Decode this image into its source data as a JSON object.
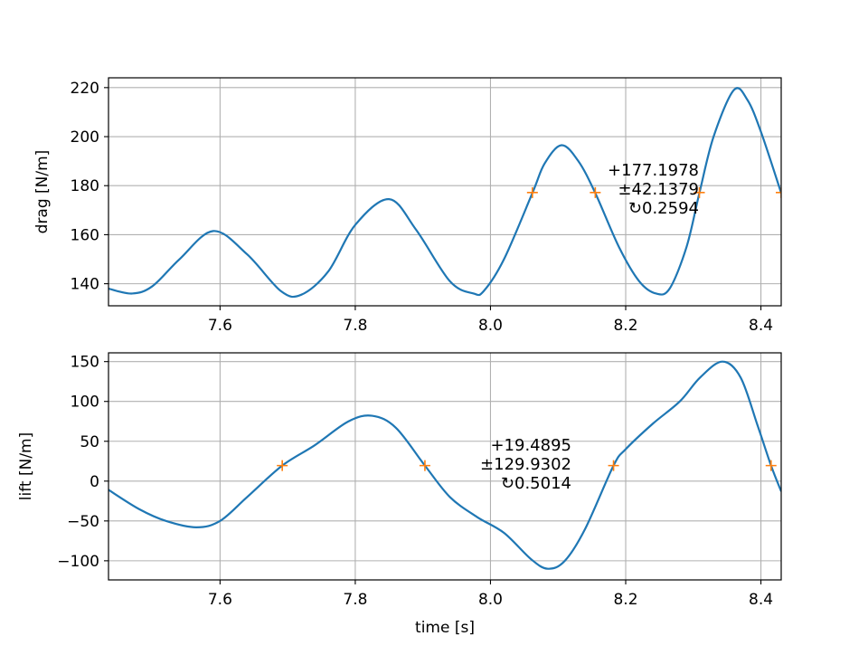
{
  "colors": {
    "line": "#1f77b4",
    "marker": "#ff7f0e",
    "grid": "#b0b0b0",
    "axes": "#000000",
    "background": "#ffffff"
  },
  "chart_data": [
    {
      "type": "line",
      "title": "",
      "xlabel": "",
      "ylabel": "drag [N/m]",
      "xlim": [
        7.435,
        8.43
      ],
      "ylim": [
        131,
        224
      ],
      "xticks": [
        "7.6",
        "7.8",
        "8.0",
        "8.2",
        "8.4"
      ],
      "yticks": [
        "140",
        "160",
        "180",
        "200",
        "220"
      ],
      "grid": true,
      "series": [
        {
          "x": [
            7.435,
            7.47,
            7.5,
            7.54,
            7.59,
            7.64,
            7.69,
            7.72,
            7.76,
            7.8,
            7.85,
            7.89,
            7.94,
            7.975,
            7.99,
            8.02,
            8.062,
            8.08,
            8.105,
            8.13,
            8.155,
            8.19,
            8.22,
            8.245,
            8.265,
            8.29,
            8.309,
            8.33,
            8.36,
            8.38,
            8.4,
            8.43
          ],
          "y": [
            138,
            136,
            139,
            150,
            161.5,
            152,
            137,
            135.5,
            145,
            164,
            174.5,
            162,
            141,
            136,
            137,
            150,
            177,
            189,
            196.5,
            190,
            177,
            155,
            141,
            136,
            138,
            155,
            177,
            200,
            219,
            215,
            202,
            177
          ]
        }
      ],
      "markers": {
        "x": [
          8.062,
          8.155,
          8.309,
          8.43
        ],
        "y": [
          177.1978,
          177.1978,
          177.1978,
          177.1978
        ]
      },
      "annotations": [
        "+177.1978",
        "±42.1379",
        "↻0.2594"
      ]
    },
    {
      "type": "line",
      "title": "",
      "xlabel": "time [s]",
      "ylabel": "lift [N/m]",
      "xlim": [
        7.435,
        8.43
      ],
      "ylim": [
        -124,
        161
      ],
      "xticks": [
        "7.6",
        "7.8",
        "8.0",
        "8.2",
        "8.4"
      ],
      "yticks": [
        "150",
        "100",
        "50",
        "0",
        "−50",
        "−100"
      ],
      "grid": true,
      "series": [
        {
          "x": [
            7.435,
            7.48,
            7.52,
            7.565,
            7.6,
            7.64,
            7.692,
            7.74,
            7.79,
            7.825,
            7.86,
            7.903,
            7.94,
            7.98,
            8.02,
            8.06,
            8.085,
            8.11,
            8.14,
            8.182,
            8.2,
            8.24,
            8.28,
            8.31,
            8.343,
            8.37,
            8.395,
            8.415,
            8.43
          ],
          "y": [
            -11,
            -35,
            -50,
            -58,
            -50,
            -20,
            19.5,
            45,
            75,
            82,
            67,
            19.5,
            -20,
            -45,
            -65,
            -98,
            -110,
            -100,
            -60,
            19.5,
            40,
            72,
            100,
            130,
            150,
            130,
            70,
            19.5,
            -13
          ]
        }
      ],
      "markers": {
        "x": [
          7.692,
          7.903,
          8.182,
          8.415
        ],
        "y": [
          19.4895,
          19.4895,
          19.4895,
          19.4895
        ]
      },
      "annotations": [
        "+19.4895",
        "±129.9302",
        "↻0.5014"
      ]
    }
  ]
}
